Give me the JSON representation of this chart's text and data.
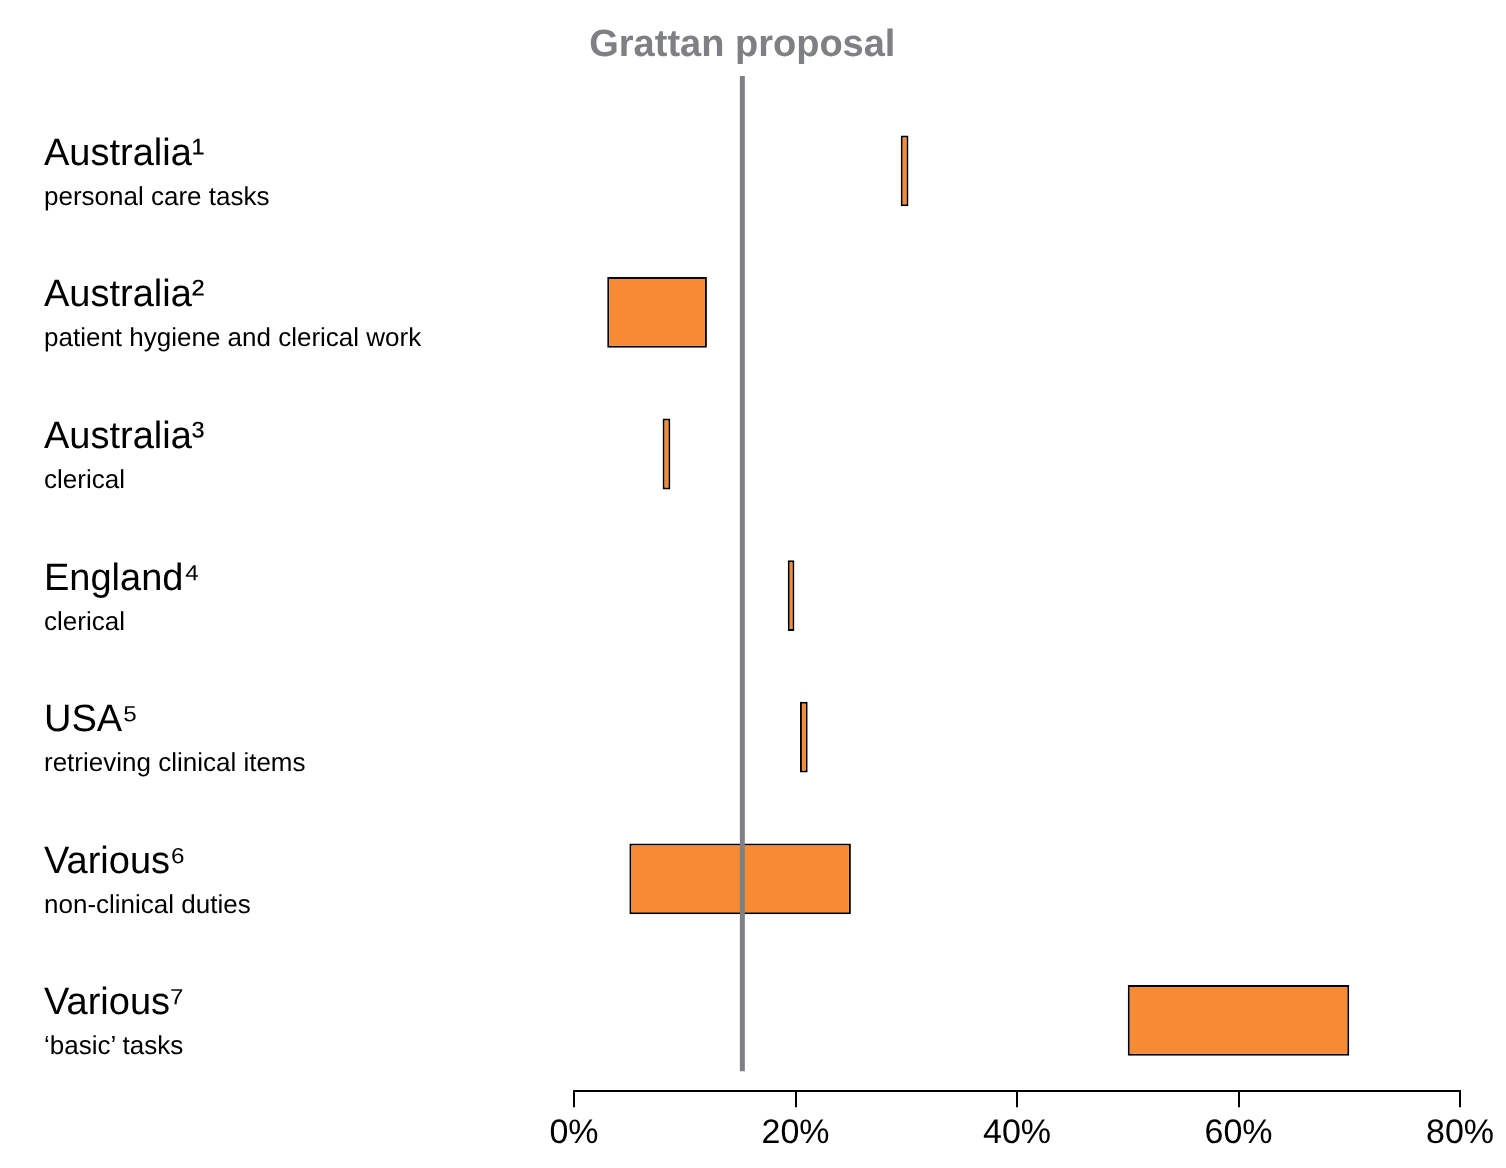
{
  "chart_data": {
    "type": "bar",
    "orientation": "horizontal",
    "categories": [
      "Australia¹\npersonal care tasks",
      "Australia²\npatient hygiene and clerical work",
      "Australia³\nclerical",
      "England⁴\nclerical",
      "USA⁵\nretrieving clinical items",
      "Various⁶\nnon-clinical duties",
      "Various⁷\n‘basic’ tasks"
    ],
    "base": [
      29.5,
      3,
      8,
      19.3,
      20.4,
      5,
      50
    ],
    "values": [
      0.7,
      9,
      0.7,
      0.6,
      0.7,
      20,
      20
    ],
    "color": "#f68b33",
    "xlim": [
      0,
      80
    ],
    "xticks": [
      {
        "value": 0,
        "label": "0%"
      },
      {
        "value": 20,
        "label": "20%"
      },
      {
        "value": 40,
        "label": "40%"
      },
      {
        "value": 60,
        "label": "60%"
      },
      {
        "value": 80,
        "label": "80%"
      }
    ],
    "ref_lines": [
      {
        "axis": "x",
        "value": 15.2,
        "label": "Grattan proposal",
        "color": "#7f8083"
      }
    ],
    "grid": false,
    "legend": false
  }
}
